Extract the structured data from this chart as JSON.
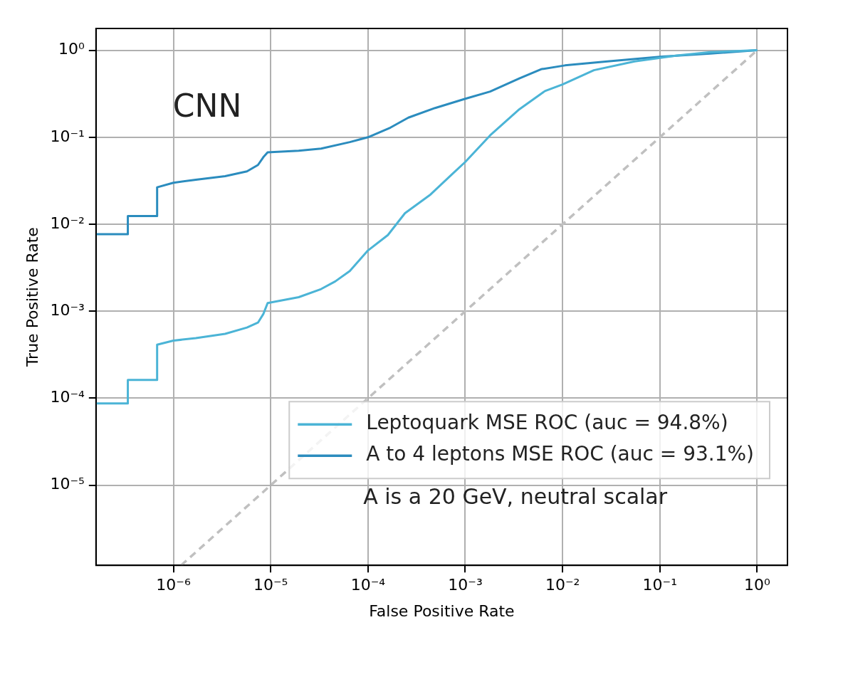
{
  "chart_data": {
    "type": "line",
    "xlabel": "False Positive Rate",
    "ylabel": "True Positive Rate",
    "log": "xy",
    "grid": true,
    "legend": "bottom right",
    "marker": "none",
    "xlim": [
      1.6e-07,
      2.05
    ],
    "ylim": [
      1.2e-06,
      1.78
    ],
    "xticks": [
      {
        "value": 1e-06,
        "label": "10⁻⁶"
      },
      {
        "value": 1e-05,
        "label": "10⁻⁵"
      },
      {
        "value": 0.0001,
        "label": "10⁻⁴"
      },
      {
        "value": 0.001,
        "label": "10⁻³"
      },
      {
        "value": 0.01,
        "label": "10⁻²"
      },
      {
        "value": 0.1,
        "label": "10⁻¹"
      },
      {
        "value": 1,
        "label": "10⁰"
      }
    ],
    "yticks": [
      {
        "value": 1e-05,
        "label": "10⁻⁵"
      },
      {
        "value": 0.0001,
        "label": "10⁻⁴"
      },
      {
        "value": 0.001,
        "label": "10⁻³"
      },
      {
        "value": 0.01,
        "label": "10⁻²"
      },
      {
        "value": 0.1,
        "label": "10⁻¹"
      },
      {
        "value": 1,
        "label": "10⁰"
      }
    ],
    "annotations": [
      "CNN",
      "A is a 20 GeV, neutral scalar"
    ],
    "series": [
      {
        "name": "Leptoquark MSE ROC (auc = 94.8%)",
        "color": "#4bb4d6",
        "x": [
          1.6e-07,
          3.4e-07,
          3.4e-07,
          6.8e-07,
          6.8e-07,
          1e-06,
          1.7e-06,
          3.4e-06,
          5.7e-06,
          7.4e-06,
          8.4e-06,
          9.3e-06,
          1.94e-05,
          3.3e-05,
          4.6e-05,
          6.5e-05,
          0.0001,
          0.00016,
          0.00024,
          0.00044,
          0.00072,
          0.001,
          0.0018,
          0.0036,
          0.0066,
          0.01,
          0.021,
          0.055,
          0.15,
          0.33,
          1
        ],
        "values": [
          8.7e-05,
          8.7e-05,
          0.000162,
          0.000162,
          0.000413,
          0.00046,
          0.00049,
          0.00055,
          0.00065,
          0.00074,
          0.00093,
          0.00124,
          0.00145,
          0.0018,
          0.0022,
          0.0029,
          0.005,
          0.0075,
          0.0134,
          0.022,
          0.037,
          0.052,
          0.105,
          0.21,
          0.34,
          0.405,
          0.59,
          0.745,
          0.87,
          0.95,
          1
        ]
      },
      {
        "name": "A to 4 leptons MSE ROC (auc = 93.1%)",
        "color": "#2b8cbe",
        "x": [
          1.6e-07,
          3.4e-07,
          3.4e-07,
          6.8e-07,
          6.8e-07,
          1e-06,
          1.7e-06,
          3.4e-06,
          5.7e-06,
          7.4e-06,
          8.4e-06,
          9.3e-06,
          1.94e-05,
          3.3e-05,
          6.5e-05,
          0.0001,
          0.00017,
          0.00026,
          0.00049,
          0.001,
          0.0018,
          0.0036,
          0.006,
          0.0106,
          0.029,
          0.1,
          0.33,
          1
        ],
        "values": [
          0.0077,
          0.0077,
          0.0124,
          0.0124,
          0.0266,
          0.03,
          0.0325,
          0.0357,
          0.0405,
          0.048,
          0.059,
          0.067,
          0.07,
          0.074,
          0.088,
          0.1,
          0.129,
          0.168,
          0.217,
          0.277,
          0.335,
          0.474,
          0.605,
          0.67,
          0.745,
          0.84,
          0.917,
          1
        ]
      },
      {
        "color": "#c0c0c0",
        "line_style": "dashed",
        "x": [
          1.2e-06,
          1
        ],
        "values": [
          1.2e-06,
          1
        ]
      }
    ]
  }
}
